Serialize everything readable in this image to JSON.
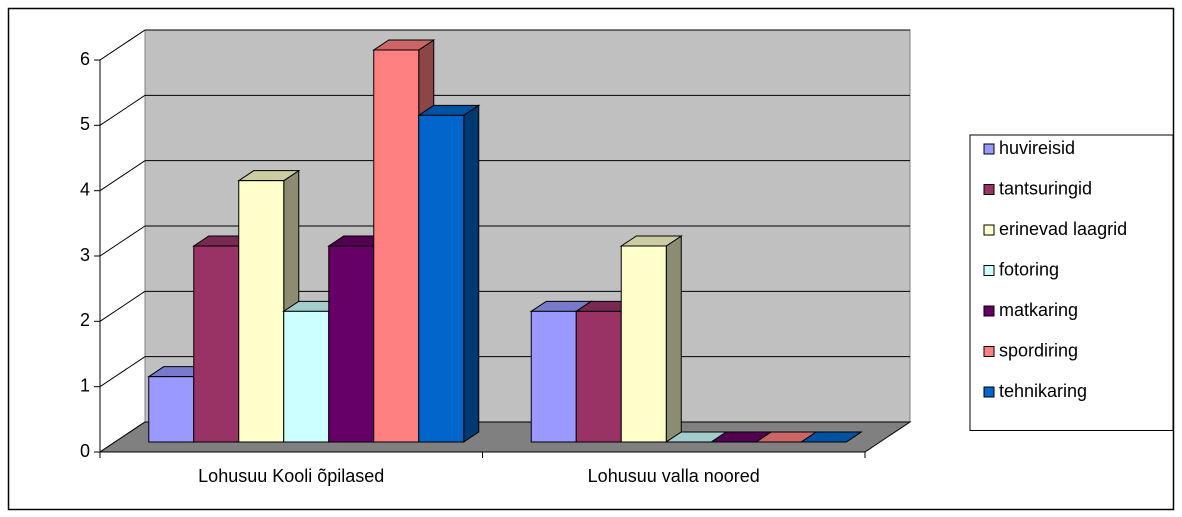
{
  "chart_data": {
    "type": "bar3d",
    "categories": [
      "Lohusuu Kooli õpilased",
      "Lohusuu valla noored"
    ],
    "series": [
      {
        "name": "huvireisid",
        "color": "#9999ff",
        "values": [
          1,
          2
        ]
      },
      {
        "name": "tantsuringid",
        "color": "#993366",
        "values": [
          3,
          2
        ]
      },
      {
        "name": "erinevad laagrid",
        "color": "#ffffcc",
        "values": [
          4,
          3
        ]
      },
      {
        "name": "fotoring",
        "color": "#ccffff",
        "values": [
          2,
          0
        ]
      },
      {
        "name": "matkaring",
        "color": "#660066",
        "values": [
          3,
          0
        ]
      },
      {
        "name": "spordiring",
        "color": "#ff8080",
        "values": [
          6,
          0
        ]
      },
      {
        "name": "tehnikaring",
        "color": "#0066cc",
        "values": [
          5,
          0
        ]
      }
    ],
    "ylim": [
      0,
      6
    ],
    "yticks": [
      0,
      1,
      2,
      3,
      4,
      5,
      6
    ],
    "grid": true,
    "legend": "right"
  }
}
